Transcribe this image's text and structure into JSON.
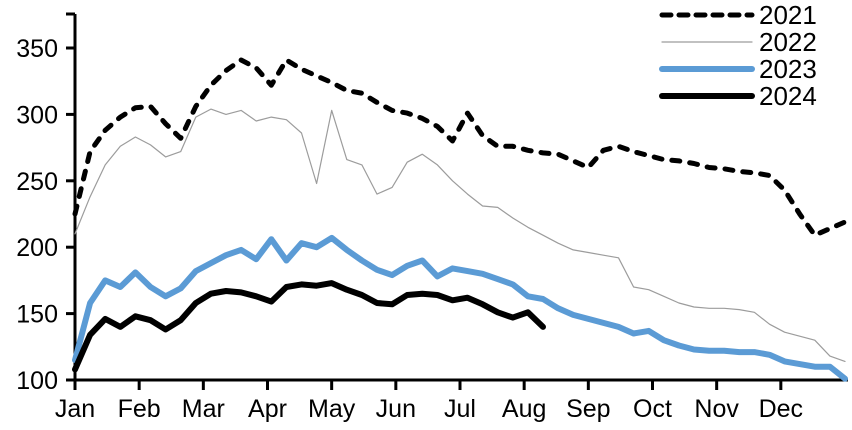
{
  "chart_data": {
    "type": "line",
    "title": "",
    "xlabel": "",
    "ylabel": "",
    "x_axis": {
      "tick_labels": [
        "Jan",
        "Feb",
        "Mar",
        "Apr",
        "May",
        "Jun",
        "Jul",
        "Aug",
        "Sep",
        "Oct",
        "Nov",
        "Dec"
      ],
      "sampling": "weekly (one point per week of the year)"
    },
    "y_axis": {
      "tick_values": [
        100,
        150,
        200,
        250,
        300,
        350
      ],
      "range": [
        100,
        377
      ],
      "grid": false
    },
    "legend": {
      "position": "top-right",
      "entries": [
        "2021",
        "2022",
        "2023",
        "2024"
      ]
    },
    "series": [
      {
        "name": "2022",
        "color": "#9c9c9c",
        "style": "solid",
        "width": 1.2,
        "values": [
          210,
          238,
          262,
          276,
          283,
          277,
          268,
          272,
          298,
          304,
          300,
          303,
          295,
          298,
          296,
          286,
          248,
          303,
          266,
          262,
          240,
          245,
          264,
          270,
          262,
          250,
          240,
          231,
          230,
          222,
          215,
          209,
          203,
          198,
          196,
          194,
          192,
          170,
          168,
          163,
          158,
          155,
          154,
          154,
          153,
          151,
          142,
          136,
          133,
          130,
          118,
          114
        ]
      },
      {
        "name": "2021",
        "color": "#000000",
        "style": "dashed",
        "width": 5,
        "values": [
          225,
          272,
          288,
          298,
          305,
          306,
          293,
          282,
          306,
          322,
          333,
          341,
          335,
          322,
          341,
          334,
          329,
          324,
          318,
          316,
          309,
          303,
          301,
          297,
          291,
          280,
          301,
          284,
          276,
          276,
          273,
          271,
          270,
          265,
          260,
          273,
          276,
          272,
          269,
          266,
          265,
          263,
          260,
          259,
          257,
          256,
          254,
          243,
          225,
          209,
          214,
          219
        ]
      },
      {
        "name": "2023",
        "color": "#5B9BD5",
        "style": "solid",
        "width": 6,
        "values": [
          115,
          158,
          175,
          170,
          181,
          170,
          163,
          169,
          182,
          188,
          194,
          198,
          191,
          206,
          190,
          203,
          200,
          207,
          198,
          190,
          183,
          179,
          186,
          190,
          178,
          184,
          182,
          180,
          176,
          172,
          163,
          161,
          154,
          149,
          146,
          143,
          140,
          135,
          137,
          130,
          126,
          123,
          122,
          122,
          121,
          121,
          119,
          114,
          112,
          110,
          110,
          101
        ]
      },
      {
        "name": "2024",
        "color": "#000000",
        "style": "solid",
        "width": 6,
        "values": [
          108,
          134,
          146,
          140,
          148,
          145,
          138,
          145,
          158,
          165,
          167,
          166,
          163,
          159,
          170,
          172,
          171,
          173,
          168,
          164,
          158,
          157,
          164,
          165,
          164,
          160,
          162,
          157,
          151,
          147,
          151,
          140
        ]
      }
    ],
    "legend_order": [
      "2021",
      "2022",
      "2023",
      "2024"
    ]
  }
}
